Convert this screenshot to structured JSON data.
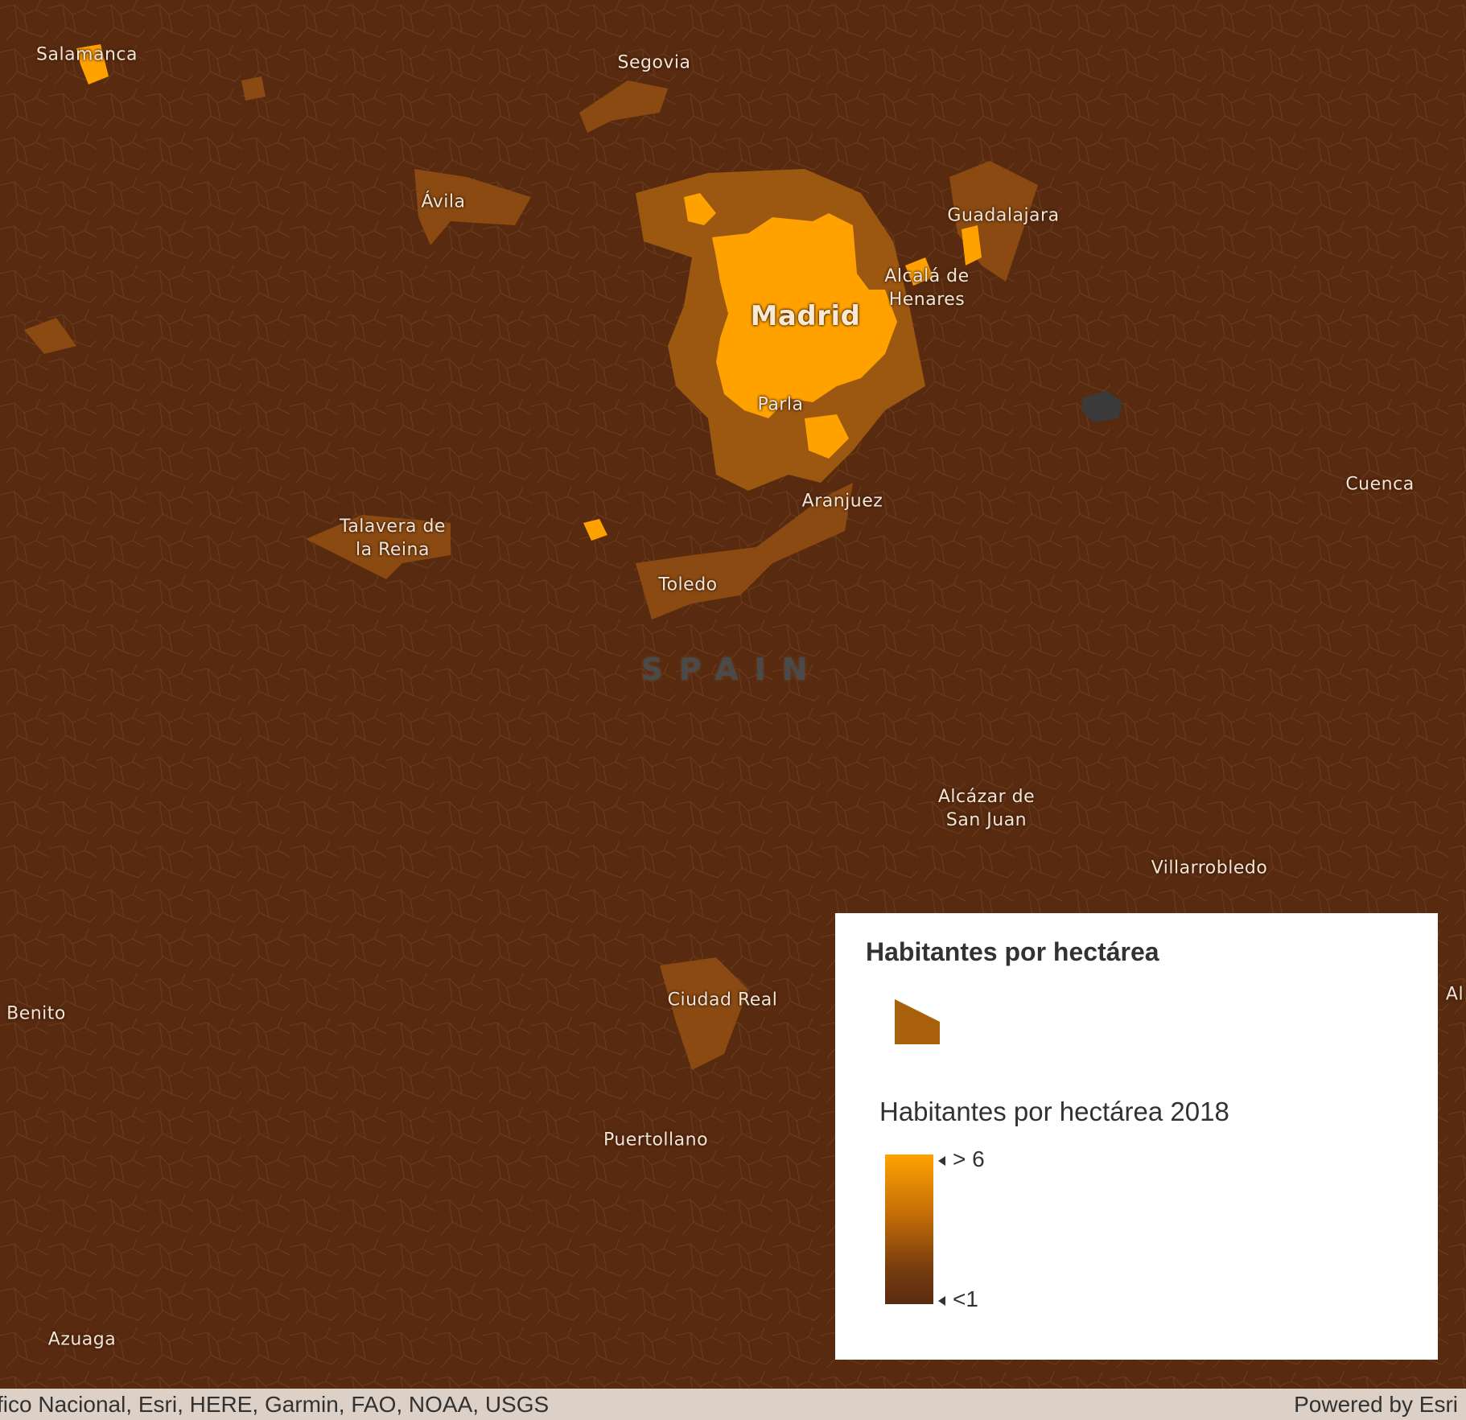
{
  "map": {
    "country_label": "SPAIN",
    "cities": [
      {
        "name": "Salamanca"
      },
      {
        "name": "Segovia"
      },
      {
        "name": "Ávila"
      },
      {
        "name": "Guadalajara"
      },
      {
        "name": "Alcalá de\nHenares"
      },
      {
        "name": "Madrid"
      },
      {
        "name": "Parla"
      },
      {
        "name": "Aranjuez"
      },
      {
        "name": "Cuenca"
      },
      {
        "name": "Talavera de\nla Reina"
      },
      {
        "name": "Toledo"
      },
      {
        "name": "Alcázar de\nSan Juan"
      },
      {
        "name": "Villarrobledo"
      },
      {
        "name": "Ciudad Real"
      },
      {
        "name": "Benito"
      },
      {
        "name": "Puertollano"
      },
      {
        "name": "Azuaga"
      },
      {
        "name": "Al"
      }
    ]
  },
  "legend": {
    "title": "Habitantes por hectárea",
    "subtitle": "Habitantes por hectárea 2018",
    "high_label": "> 6",
    "low_label": "<1",
    "colors": {
      "high": "#ffa200",
      "low": "#582b11",
      "swatch": "#a8600c"
    }
  },
  "attribution": {
    "text": "fico Nacional, Esri, HERE, Garmin, FAO, NOAA, USGS",
    "powered_by": "Powered by Esri"
  }
}
